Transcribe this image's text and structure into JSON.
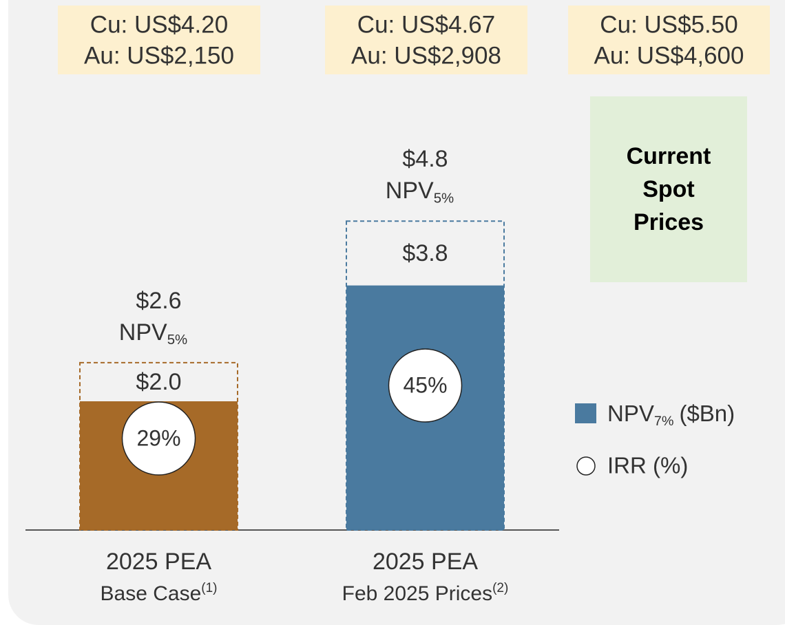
{
  "chart_data": {
    "type": "bar",
    "categories": [
      {
        "title": "2025 PEA",
        "subtitle": "Base Case",
        "note": "(1)"
      },
      {
        "title": "2025 PEA",
        "subtitle": "Feb 2025 Prices",
        "note": "(2)"
      }
    ],
    "price_decks": [
      {
        "cu": "Cu: US$4.20",
        "au": "Au: US$2,150"
      },
      {
        "cu": "Cu: US$4.67",
        "au": "Au: US$2,908"
      },
      {
        "cu": "Cu: US$5.50",
        "au": "Au: US$4,600"
      }
    ],
    "spot_box": [
      "Current",
      "Spot",
      "Prices"
    ],
    "spot_box_color": "#e2efd9",
    "price_box_color": "#fdf0cf",
    "series": [
      {
        "name": "NPV",
        "name_sub": "7%",
        "name_suffix": "($Bn)",
        "color": "#4a7a9f",
        "bar_colors": [
          "#a66a28",
          "#4a7a9f"
        ],
        "values": [
          2.0,
          3.8
        ],
        "value_labels": [
          "$2.0",
          "$3.8"
        ]
      },
      {
        "name": "NPV",
        "name_sub": "5%",
        "style": "dashed",
        "bar_colors": [
          "#a66a28",
          "#4a7a9f"
        ],
        "values": [
          2.6,
          4.8
        ],
        "value_labels": [
          "$2.6",
          "$4.8"
        ]
      },
      {
        "name": "IRR (%)",
        "color": "#ffffff",
        "values": [
          29,
          45
        ],
        "value_labels": [
          "29%",
          "45%"
        ]
      }
    ]
  }
}
